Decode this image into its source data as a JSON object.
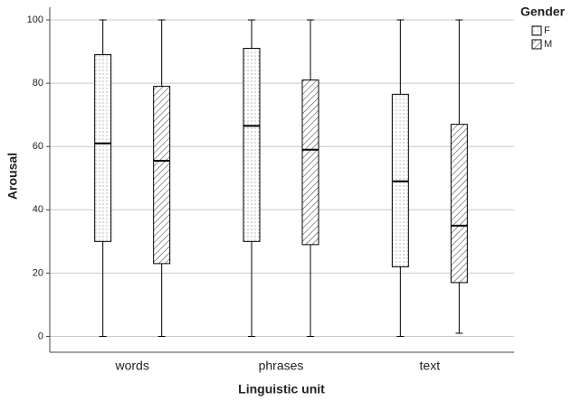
{
  "chart_data": {
    "type": "box",
    "x_label": "Linguistic unit",
    "y_label": "Arousal",
    "legend_title": "Gender",
    "legend": "right-top",
    "grid": true,
    "categories": [
      "words",
      "phrases",
      "text"
    ],
    "series": [
      {
        "name": "F",
        "pattern": "dots",
        "color": "#000000",
        "values": [
          {
            "min": 0,
            "q1": 30,
            "median": 61,
            "q3": 89,
            "max": 100
          },
          {
            "min": 0,
            "q1": 30,
            "median": 66.5,
            "q3": 91,
            "max": 100
          },
          {
            "min": 0,
            "q1": 22,
            "median": 49,
            "q3": 76.5,
            "max": 100
          }
        ]
      },
      {
        "name": "M",
        "pattern": "hatch",
        "color": "#000000",
        "values": [
          {
            "min": 0,
            "q1": 23,
            "median": 55.5,
            "q3": 79,
            "max": 100
          },
          {
            "min": 0,
            "q1": 29,
            "median": 59,
            "q3": 81,
            "max": 100
          },
          {
            "min": 1,
            "q1": 17,
            "median": 35,
            "q3": 67,
            "max": 100
          }
        ]
      }
    ],
    "ylim": [
      -5,
      104
    ],
    "yticks": [
      0,
      20,
      40,
      60,
      80,
      100
    ]
  }
}
